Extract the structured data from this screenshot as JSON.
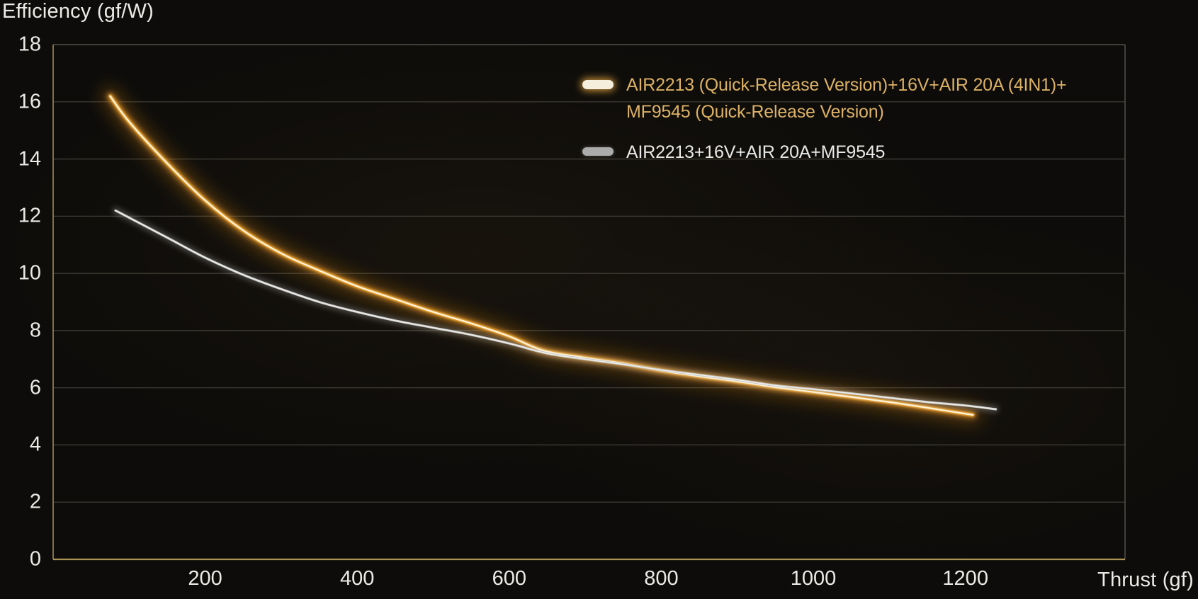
{
  "chart_data": {
    "type": "line",
    "xlabel": "Thrust (gf)",
    "ylabel": "Efficiency (gf/W)",
    "xlim": [
      0,
      1410
    ],
    "ylim": [
      0,
      18
    ],
    "x_ticks": [
      200,
      400,
      600,
      800,
      1000,
      1200
    ],
    "y_ticks": [
      0,
      2,
      4,
      6,
      8,
      10,
      12,
      14,
      16,
      18
    ],
    "grid": "horizontal",
    "legend_position": "inside-top-right",
    "series": [
      {
        "name": "AIR2213 (Quick-Release Version)+16V+AIR 20A (4IN1)+MF9545 (Quick-Release Version)",
        "legend_lines": [
          "AIR2213 (Quick-Release Version)+16V+AIR 20A (4IN1)+",
          "MF9545 (Quick-Release Version)"
        ],
        "label_color": "#dcb165",
        "glow_color": "#e08f1c",
        "color": "#ffb843",
        "core_color": "#fff4da",
        "points": [
          [
            75,
            16.2
          ],
          [
            100,
            15.3
          ],
          [
            150,
            13.85
          ],
          [
            200,
            12.55
          ],
          [
            250,
            11.5
          ],
          [
            300,
            10.7
          ],
          [
            350,
            10.1
          ],
          [
            400,
            9.55
          ],
          [
            450,
            9.1
          ],
          [
            500,
            8.65
          ],
          [
            550,
            8.25
          ],
          [
            600,
            7.8
          ],
          [
            645,
            7.3
          ],
          [
            700,
            7.05
          ],
          [
            750,
            6.85
          ],
          [
            800,
            6.6
          ],
          [
            850,
            6.4
          ],
          [
            900,
            6.22
          ],
          [
            950,
            6.02
          ],
          [
            1000,
            5.85
          ],
          [
            1050,
            5.68
          ],
          [
            1100,
            5.5
          ],
          [
            1150,
            5.3
          ],
          [
            1210,
            5.05
          ]
        ]
      },
      {
        "name": "AIR2213+16V+AIR 20A+MF9545",
        "legend_lines": [
          "AIR2213+16V+AIR 20A+MF9545"
        ],
        "label_color": "#e8e8e6",
        "glow_color": "#e0e0de",
        "color": "#c6c6c4",
        "core_color": "#f3f3f1",
        "points": [
          [
            82,
            12.2
          ],
          [
            100,
            11.95
          ],
          [
            150,
            11.25
          ],
          [
            200,
            10.55
          ],
          [
            250,
            9.95
          ],
          [
            300,
            9.45
          ],
          [
            350,
            9.0
          ],
          [
            400,
            8.65
          ],
          [
            450,
            8.35
          ],
          [
            500,
            8.1
          ],
          [
            550,
            7.85
          ],
          [
            600,
            7.55
          ],
          [
            650,
            7.2
          ],
          [
            700,
            7.0
          ],
          [
            750,
            6.82
          ],
          [
            800,
            6.62
          ],
          [
            850,
            6.45
          ],
          [
            900,
            6.28
          ],
          [
            950,
            6.08
          ],
          [
            1000,
            5.95
          ],
          [
            1050,
            5.8
          ],
          [
            1100,
            5.65
          ],
          [
            1150,
            5.5
          ],
          [
            1200,
            5.38
          ],
          [
            1240,
            5.25
          ]
        ]
      }
    ],
    "colors": {
      "background": "#0d0c0a",
      "gridline": "#44413a",
      "frame_top": "#52504a",
      "frame_right": "#52504a",
      "frame_left": "#8f7c4e",
      "frame_bottom": "#ad9258",
      "tick_text": "#eceae6"
    }
  }
}
